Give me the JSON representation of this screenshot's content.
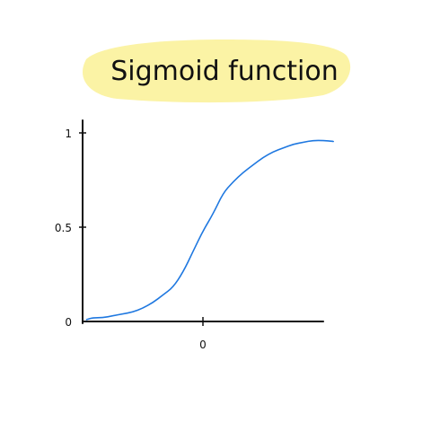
{
  "colors": {
    "background": "#ffffff",
    "highlight": "#fbf3a5",
    "curve": "#1f78e0",
    "ink": "#111111"
  },
  "chart_data": {
    "type": "line",
    "title": "Sigmoid function",
    "xlabel": "",
    "ylabel": "",
    "grid": false,
    "legend": "none",
    "x_ticks": [
      {
        "value": 0,
        "label": "0"
      }
    ],
    "y_ticks": [
      {
        "value": 0,
        "label": "0"
      },
      {
        "value": 0.5,
        "label": "0.5"
      },
      {
        "value": 1,
        "label": "1"
      }
    ],
    "xlim": [
      -6,
      6
    ],
    "ylim": [
      0,
      1
    ],
    "series": [
      {
        "x": [
          -5.8,
          -5.5,
          -5.0,
          -4.5,
          -4.0,
          -3.5,
          -3.0,
          -2.5,
          -2.0,
          -1.5,
          -1.0,
          -0.5,
          0.0,
          0.5,
          1.0,
          1.5,
          2.0,
          2.5,
          3.0,
          3.5,
          4.0,
          4.5,
          5.0,
          5.5,
          6.0,
          6.5
        ],
        "y": [
          0.01,
          0.02,
          0.02,
          0.03,
          0.04,
          0.05,
          0.07,
          0.1,
          0.14,
          0.18,
          0.26,
          0.37,
          0.48,
          0.57,
          0.68,
          0.74,
          0.79,
          0.83,
          0.87,
          0.9,
          0.92,
          0.94,
          0.95,
          0.96,
          0.96,
          0.955
        ]
      }
    ]
  }
}
